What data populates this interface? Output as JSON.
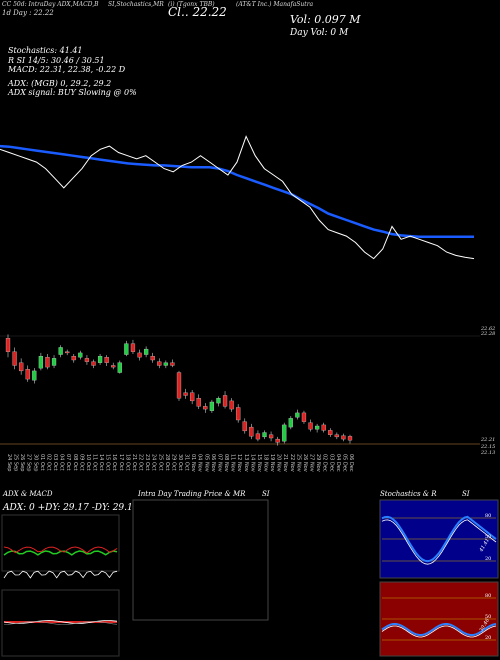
{
  "header": {
    "line1": "CC 50d: IntraDay ADX,MACD,B",
    "line1b": "SI,Stochastics,MR",
    "line1c": "(i) (Tgonx TBB)",
    "line1d": "(AT&T Inc.) ManafaSutra",
    "cl_prefix": "Cl.. 22.22",
    "day_label": "1d  Day : 22.22",
    "vol": "Vol: 0.097 M",
    "day_vol": "Day Vol: 0  M",
    "stoch": "Stochastics: 41.41",
    "si": "R                        SI 14/5: 30.46  / 30.51",
    "macd": "MACD: 22.31,  22.38,  -0.22  D",
    "adx": "ADX:                              (MGB) 0,  29.2,  29.2",
    "adx_signal": "ADX  signal:                           BUY Slowing @ 0%"
  },
  "price_levels": [
    "22.62",
    "22.28",
    "22.21",
    "22.15",
    "22.13"
  ],
  "panels": {
    "adx_title": "ADX  & MACD",
    "adx_values": "ADX: 0  +DY: 29.17  -DY: 29.17",
    "intraday_title": "Intra  Day Trading Price  & MR",
    "si_label": "SI",
    "stoch_title": "Stochastics & R",
    "stoch_si": "SI",
    "stoch_ticks": [
      "80",
      "50",
      "20"
    ],
    "stoch_value": "41.41",
    "rsi_ticks": [
      "80",
      "50",
      "20"
    ],
    "rsi_value": "30.46"
  },
  "colors": {
    "up": "#22cc44",
    "down": "#dd2222",
    "ma": "#1a5cff",
    "price_line": "#ffffff",
    "rsi_bg": "#8b0000",
    "stoch_bg": "#00008b"
  },
  "chart_data": {
    "type": "candlestick",
    "x": [
      "24 Sep",
      "25 Sep",
      "26 Sep",
      "27 Sep",
      "30 Sep",
      "01 Oct",
      "02 Oct",
      "03 Oct",
      "04 Oct",
      "07 Oct",
      "08 Oct",
      "09 Oct",
      "10 Oct",
      "11 Oct",
      "14 Oct",
      "15 Oct",
      "16 Oct",
      "17 Oct",
      "18 Oct",
      "21 Oct",
      "22 Oct",
      "23 Oct",
      "24 Oct",
      "25 Oct",
      "28 Oct",
      "29 Oct",
      "30 Oct",
      "31 Oct",
      "01 Nov",
      "04 Nov",
      "05 Nov",
      "06 Nov",
      "07 Nov",
      "08 Nov",
      "11 Nov",
      "12 Nov",
      "13 Nov",
      "14 Nov",
      "15 Nov",
      "18 Nov",
      "19 Nov",
      "20 Nov",
      "21 Nov",
      "22 Nov",
      "25 Nov",
      "26 Nov",
      "27 Nov",
      "29 Nov",
      "02 Dec",
      "03 Dec",
      "04 Dec",
      "05 Dec",
      "06 Dec"
    ],
    "candles": [
      {
        "o": 23.55,
        "c": 23.3,
        "h": 23.62,
        "l": 23.2
      },
      {
        "o": 23.3,
        "c": 23.05,
        "h": 23.38,
        "l": 22.98
      },
      {
        "o": 23.1,
        "c": 22.95,
        "h": 23.18,
        "l": 22.88
      },
      {
        "o": 22.98,
        "c": 22.8,
        "h": 23.05,
        "l": 22.75
      },
      {
        "o": 22.78,
        "c": 22.95,
        "h": 23.0,
        "l": 22.72
      },
      {
        "o": 23.0,
        "c": 23.22,
        "h": 23.28,
        "l": 22.96
      },
      {
        "o": 23.2,
        "c": 23.02,
        "h": 23.26,
        "l": 22.98
      },
      {
        "o": 23.05,
        "c": 23.18,
        "h": 23.24,
        "l": 23.0
      },
      {
        "o": 23.25,
        "c": 23.38,
        "h": 23.42,
        "l": 23.2
      },
      {
        "o": 23.3,
        "c": 23.28,
        "h": 23.34,
        "l": 23.24
      },
      {
        "o": 23.22,
        "c": 23.15,
        "h": 23.26,
        "l": 23.1
      },
      {
        "o": 23.2,
        "c": 23.28,
        "h": 23.32,
        "l": 23.16
      },
      {
        "o": 23.18,
        "c": 23.12,
        "h": 23.24,
        "l": 23.06
      },
      {
        "o": 23.12,
        "c": 23.05,
        "h": 23.16,
        "l": 23.0
      },
      {
        "o": 23.1,
        "c": 23.22,
        "h": 23.26,
        "l": 23.06
      },
      {
        "o": 23.2,
        "c": 23.1,
        "h": 23.24,
        "l": 23.04
      },
      {
        "o": 23.05,
        "c": 23.02,
        "h": 23.1,
        "l": 22.98
      },
      {
        "o": 22.92,
        "c": 23.1,
        "h": 23.14,
        "l": 22.9
      },
      {
        "o": 23.25,
        "c": 23.45,
        "h": 23.5,
        "l": 23.22
      },
      {
        "o": 23.45,
        "c": 23.3,
        "h": 23.52,
        "l": 23.26
      },
      {
        "o": 23.28,
        "c": 23.2,
        "h": 23.34,
        "l": 23.14
      },
      {
        "o": 23.25,
        "c": 23.35,
        "h": 23.4,
        "l": 23.2
      },
      {
        "o": 23.22,
        "c": 23.15,
        "h": 23.28,
        "l": 23.1
      },
      {
        "o": 23.12,
        "c": 23.05,
        "h": 23.18,
        "l": 23.0
      },
      {
        "o": 23.05,
        "c": 23.1,
        "h": 23.14,
        "l": 23.0
      },
      {
        "o": 23.1,
        "c": 23.05,
        "h": 23.16,
        "l": 23.02
      },
      {
        "o": 22.92,
        "c": 22.45,
        "h": 22.95,
        "l": 22.4
      },
      {
        "o": 22.55,
        "c": 22.5,
        "h": 22.62,
        "l": 22.44
      },
      {
        "o": 22.55,
        "c": 22.4,
        "h": 22.6,
        "l": 22.34
      },
      {
        "o": 22.45,
        "c": 22.3,
        "h": 22.52,
        "l": 22.25
      },
      {
        "o": 22.3,
        "c": 22.25,
        "h": 22.36,
        "l": 22.18
      },
      {
        "o": 22.22,
        "c": 22.38,
        "h": 22.42,
        "l": 22.18
      },
      {
        "o": 22.36,
        "c": 22.45,
        "h": 22.48,
        "l": 22.3
      },
      {
        "o": 22.5,
        "c": 22.3,
        "h": 22.58,
        "l": 22.26
      },
      {
        "o": 22.4,
        "c": 22.25,
        "h": 22.45,
        "l": 22.2
      },
      {
        "o": 22.28,
        "c": 22.05,
        "h": 22.34,
        "l": 22.0
      },
      {
        "o": 22.02,
        "c": 21.85,
        "h": 22.08,
        "l": 21.8
      },
      {
        "o": 21.92,
        "c": 21.75,
        "h": 21.98,
        "l": 21.7
      },
      {
        "o": 21.8,
        "c": 21.7,
        "h": 21.86,
        "l": 21.66
      },
      {
        "o": 21.74,
        "c": 21.82,
        "h": 21.86,
        "l": 21.7
      },
      {
        "o": 21.78,
        "c": 21.72,
        "h": 21.84,
        "l": 21.66
      },
      {
        "o": 21.7,
        "c": 21.64,
        "h": 21.74,
        "l": 21.58
      },
      {
        "o": 21.66,
        "c": 21.96,
        "h": 22.0,
        "l": 21.62
      },
      {
        "o": 21.92,
        "c": 22.08,
        "h": 22.12,
        "l": 21.88
      },
      {
        "o": 22.1,
        "c": 22.18,
        "h": 22.24,
        "l": 22.06
      },
      {
        "o": 22.18,
        "c": 22.02,
        "h": 22.22,
        "l": 21.98
      },
      {
        "o": 22.0,
        "c": 21.88,
        "h": 22.06,
        "l": 21.84
      },
      {
        "o": 21.88,
        "c": 21.94,
        "h": 21.98,
        "l": 21.82
      },
      {
        "o": 21.96,
        "c": 21.86,
        "h": 22.0,
        "l": 21.82
      },
      {
        "o": 21.86,
        "c": 21.78,
        "h": 21.9,
        "l": 21.74
      },
      {
        "o": 21.78,
        "c": 21.74,
        "h": 21.82,
        "l": 21.7
      },
      {
        "o": 21.76,
        "c": 21.7,
        "h": 21.8,
        "l": 21.66
      },
      {
        "o": 21.75,
        "c": 21.68,
        "h": 21.78,
        "l": 21.62
      }
    ],
    "price_line": [
      23.4,
      23.35,
      23.3,
      23.25,
      23.2,
      23.1,
      22.95,
      22.8,
      22.95,
      23.1,
      23.3,
      23.4,
      23.45,
      23.35,
      23.3,
      23.25,
      23.3,
      23.2,
      23.1,
      23.05,
      23.15,
      23.2,
      23.3,
      23.2,
      23.1,
      23.0,
      23.2,
      23.6,
      23.3,
      23.1,
      23.0,
      22.9,
      22.7,
      22.6,
      22.5,
      22.3,
      22.15,
      22.1,
      22.05,
      21.95,
      21.8,
      21.7,
      21.85,
      22.2,
      22.0,
      22.05,
      22.0,
      21.95,
      21.9,
      21.8,
      21.75,
      21.72,
      21.7
    ],
    "ma_line": [
      23.45,
      23.44,
      23.42,
      23.4,
      23.38,
      23.36,
      23.34,
      23.32,
      23.3,
      23.28,
      23.26,
      23.24,
      23.22,
      23.2,
      23.18,
      23.17,
      23.16,
      23.15,
      23.15,
      23.14,
      23.13,
      23.12,
      23.12,
      23.12,
      23.1,
      23.06,
      23.0,
      22.95,
      22.9,
      22.85,
      22.8,
      22.75,
      22.7,
      22.62,
      22.55,
      22.48,
      22.4,
      22.35,
      22.3,
      22.25,
      22.2,
      22.15,
      22.12,
      22.08,
      22.06,
      22.05,
      22.04,
      22.04,
      22.04,
      22.04,
      22.04,
      22.04,
      22.04
    ],
    "ylim": [
      21.5,
      23.7
    ]
  }
}
